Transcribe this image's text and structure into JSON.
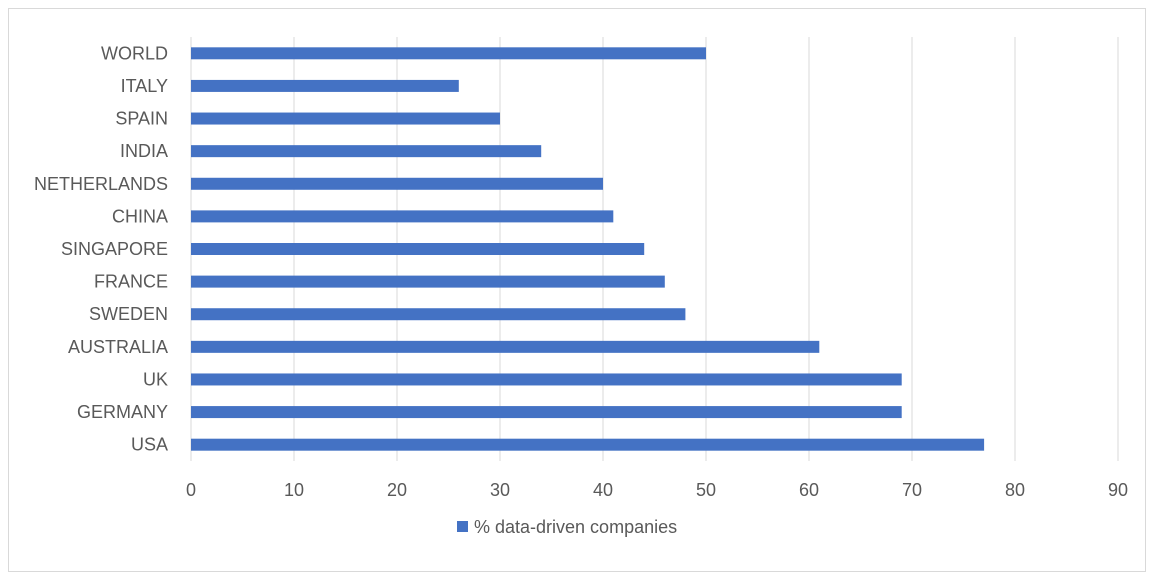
{
  "chart_data": {
    "type": "bar",
    "orientation": "horizontal",
    "categories": [
      "WORLD",
      "ITALY",
      "SPAIN",
      "INDIA",
      "NETHERLANDS",
      "CHINA",
      "SINGAPORE",
      "FRANCE",
      "SWEDEN",
      "AUSTRALIA",
      "UK",
      "GERMANY",
      "USA"
    ],
    "series": [
      {
        "name": "% data-driven companies",
        "values": [
          50,
          26,
          30,
          34,
          40,
          41,
          44,
          46,
          48,
          61,
          69,
          69,
          77
        ]
      }
    ],
    "x_ticks": [
      "0",
      "10",
      "20",
      "30",
      "40",
      "50",
      "60",
      "70",
      "80",
      "90"
    ],
    "xlim": [
      0,
      90
    ],
    "grid": "vertical",
    "legend_position": "bottom",
    "bar_color": "#4472c4",
    "gridline_color": "#d9d9d9",
    "label_color": "#595959"
  }
}
